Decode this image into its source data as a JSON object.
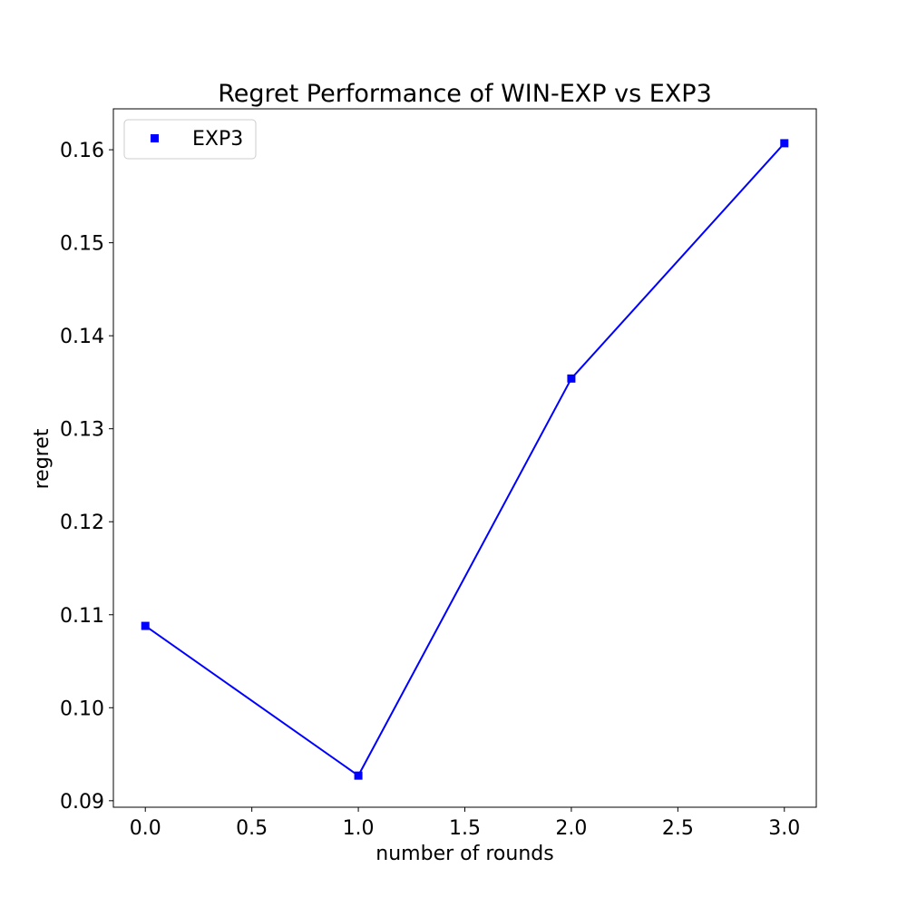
{
  "chart_data": {
    "type": "line",
    "title": "Regret Performance of WIN-EXP vs EXP3",
    "xlabel": "number of rounds",
    "ylabel": "regret",
    "xlim": [
      -0.15,
      3.15
    ],
    "ylim": [
      0.0893,
      0.1644
    ],
    "xticks": [
      0.0,
      0.5,
      1.0,
      1.5,
      2.0,
      2.5,
      3.0
    ],
    "xtick_labels": [
      "0.0",
      "0.5",
      "1.0",
      "1.5",
      "2.0",
      "2.5",
      "3.0"
    ],
    "yticks": [
      0.09,
      0.1,
      0.11,
      0.12,
      0.13,
      0.14,
      0.15,
      0.16
    ],
    "ytick_labels": [
      "0.09",
      "0.10",
      "0.11",
      "0.12",
      "0.13",
      "0.14",
      "0.15",
      "0.16"
    ],
    "grid": false,
    "legend_position": "upper-left",
    "series": [
      {
        "name": "EXP3",
        "color": "#0000ff",
        "marker": "square",
        "x": [
          0,
          1,
          2,
          3
        ],
        "y": [
          0.1088,
          0.0927,
          0.1354,
          0.1607
        ]
      }
    ]
  }
}
